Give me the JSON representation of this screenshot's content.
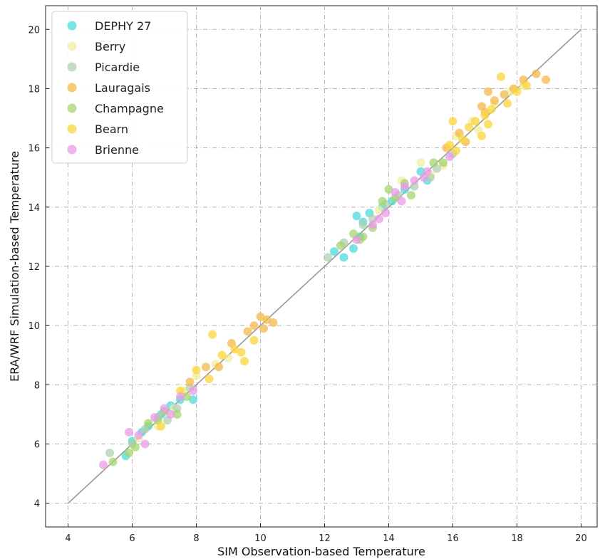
{
  "chart_data": {
    "type": "scatter",
    "title": "",
    "xlabel": "SIM Observation-based Temperature",
    "ylabel": "ERA/WRF Simulation-based Temperature",
    "xlim": [
      3.3,
      20.5
    ],
    "ylim": [
      3.2,
      20.8
    ],
    "xticks": [
      4,
      6,
      8,
      10,
      12,
      14,
      16,
      18,
      20
    ],
    "yticks": [
      4,
      6,
      8,
      10,
      12,
      14,
      16,
      18,
      20
    ],
    "grid": true,
    "grid_style": "dashdot",
    "legend_position": "top-left",
    "reference_line": {
      "from": [
        4,
        4
      ],
      "to": [
        20,
        20
      ],
      "color": "#999999"
    },
    "series": [
      {
        "name": "DEPHY 27",
        "color": "#4dd9d9",
        "points": [
          [
            5.8,
            5.6
          ],
          [
            6.0,
            6.1
          ],
          [
            6.3,
            6.4
          ],
          [
            6.5,
            6.6
          ],
          [
            6.9,
            7.0
          ],
          [
            7.2,
            7.3
          ],
          [
            7.5,
            7.5
          ],
          [
            7.9,
            7.5
          ],
          [
            12.3,
            12.5
          ],
          [
            12.6,
            12.3
          ],
          [
            12.9,
            12.6
          ],
          [
            13.1,
            13.0
          ],
          [
            13.2,
            13.5
          ],
          [
            13.0,
            13.7
          ],
          [
            13.4,
            13.8
          ],
          [
            13.8,
            14.0
          ],
          [
            14.1,
            14.2
          ],
          [
            14.5,
            14.6
          ],
          [
            15.0,
            15.2
          ],
          [
            15.2,
            14.9
          ]
        ]
      },
      {
        "name": "Berry",
        "color": "#f2eea0",
        "points": [
          [
            6.2,
            6.2
          ],
          [
            6.8,
            6.6
          ],
          [
            7.3,
            7.2
          ],
          [
            7.6,
            7.8
          ],
          [
            8.0,
            8.3
          ],
          [
            8.6,
            8.7
          ],
          [
            9.0,
            8.9
          ],
          [
            13.7,
            13.9
          ],
          [
            14.4,
            14.9
          ],
          [
            15.0,
            15.5
          ],
          [
            15.3,
            15.1
          ],
          [
            15.7,
            15.4
          ],
          [
            16.1,
            16.4
          ],
          [
            16.6,
            16.9
          ],
          [
            16.8,
            16.6
          ],
          [
            17.3,
            17.5
          ],
          [
            17.8,
            17.9
          ],
          [
            18.2,
            18.1
          ]
        ]
      },
      {
        "name": "Picardie",
        "color": "#b0cfb0",
        "points": [
          [
            5.3,
            5.7
          ],
          [
            6.0,
            6.0
          ],
          [
            6.4,
            6.5
          ],
          [
            6.8,
            6.9
          ],
          [
            7.1,
            6.8
          ],
          [
            7.4,
            7.2
          ],
          [
            7.8,
            7.9
          ],
          [
            12.1,
            12.3
          ],
          [
            12.6,
            12.8
          ],
          [
            13.2,
            13.4
          ],
          [
            13.5,
            13.6
          ],
          [
            13.9,
            14.1
          ],
          [
            14.3,
            14.4
          ],
          [
            14.8,
            14.7
          ],
          [
            15.3,
            15.0
          ],
          [
            15.5,
            15.3
          ],
          [
            16.0,
            15.8
          ]
        ]
      },
      {
        "name": "Lauragais",
        "color": "#f4b84a",
        "points": [
          [
            7.8,
            8.1
          ],
          [
            8.3,
            8.6
          ],
          [
            8.7,
            8.6
          ],
          [
            9.1,
            9.4
          ],
          [
            9.6,
            9.8
          ],
          [
            9.8,
            10.0
          ],
          [
            10.0,
            10.3
          ],
          [
            10.2,
            10.2
          ],
          [
            10.4,
            10.1
          ],
          [
            10.1,
            9.9
          ],
          [
            15.8,
            16.0
          ],
          [
            16.4,
            16.2
          ],
          [
            16.9,
            17.4
          ],
          [
            17.1,
            17.9
          ],
          [
            17.3,
            17.6
          ],
          [
            17.6,
            17.8
          ],
          [
            17.9,
            18.0
          ],
          [
            18.2,
            18.3
          ],
          [
            18.6,
            18.5
          ],
          [
            18.9,
            18.3
          ],
          [
            17.0,
            17.2
          ],
          [
            16.2,
            16.5
          ]
        ]
      },
      {
        "name": "Champagne",
        "color": "#a6d46e",
        "points": [
          [
            5.4,
            5.4
          ],
          [
            5.9,
            5.7
          ],
          [
            6.1,
            5.9
          ],
          [
            6.5,
            6.7
          ],
          [
            6.8,
            6.8
          ],
          [
            7.0,
            7.1
          ],
          [
            7.4,
            7.0
          ],
          [
            7.7,
            7.6
          ],
          [
            12.5,
            12.7
          ],
          [
            12.9,
            13.1
          ],
          [
            13.2,
            13.0
          ],
          [
            13.5,
            13.3
          ],
          [
            13.8,
            14.2
          ],
          [
            14.0,
            14.6
          ],
          [
            14.2,
            14.3
          ],
          [
            14.5,
            14.8
          ],
          [
            14.7,
            14.4
          ],
          [
            15.4,
            15.5
          ],
          [
            15.7,
            15.5
          ],
          [
            13.1,
            12.9
          ]
        ]
      },
      {
        "name": "Bearn",
        "color": "#fcd53a",
        "points": [
          [
            6.9,
            6.6
          ],
          [
            7.5,
            7.8
          ],
          [
            8.0,
            8.5
          ],
          [
            8.4,
            8.2
          ],
          [
            8.5,
            9.7
          ],
          [
            8.8,
            9.0
          ],
          [
            9.2,
            9.2
          ],
          [
            9.4,
            9.1
          ],
          [
            9.5,
            8.8
          ],
          [
            9.8,
            9.5
          ],
          [
            15.9,
            16.1
          ],
          [
            16.1,
            15.9
          ],
          [
            16.3,
            16.3
          ],
          [
            16.5,
            16.7
          ],
          [
            16.7,
            16.9
          ],
          [
            16.9,
            16.4
          ],
          [
            17.0,
            17.1
          ],
          [
            17.2,
            17.3
          ],
          [
            17.5,
            18.4
          ],
          [
            17.7,
            17.5
          ],
          [
            18.0,
            17.9
          ],
          [
            18.3,
            18.1
          ],
          [
            16.0,
            16.9
          ],
          [
            17.1,
            16.8
          ]
        ]
      },
      {
        "name": "Brienne",
        "color": "#ea9ae8",
        "points": [
          [
            5.1,
            5.3
          ],
          [
            5.9,
            6.4
          ],
          [
            6.2,
            6.3
          ],
          [
            6.4,
            6.0
          ],
          [
            6.7,
            6.9
          ],
          [
            7.0,
            7.2
          ],
          [
            7.2,
            7.0
          ],
          [
            7.5,
            7.6
          ],
          [
            7.9,
            7.8
          ],
          [
            13.0,
            12.9
          ],
          [
            13.5,
            13.4
          ],
          [
            13.7,
            13.6
          ],
          [
            13.9,
            13.8
          ],
          [
            14.2,
            14.5
          ],
          [
            14.5,
            14.7
          ],
          [
            14.8,
            14.9
          ],
          [
            15.1,
            15.0
          ],
          [
            15.2,
            15.2
          ],
          [
            15.9,
            15.7
          ],
          [
            14.4,
            14.2
          ]
        ]
      }
    ]
  }
}
